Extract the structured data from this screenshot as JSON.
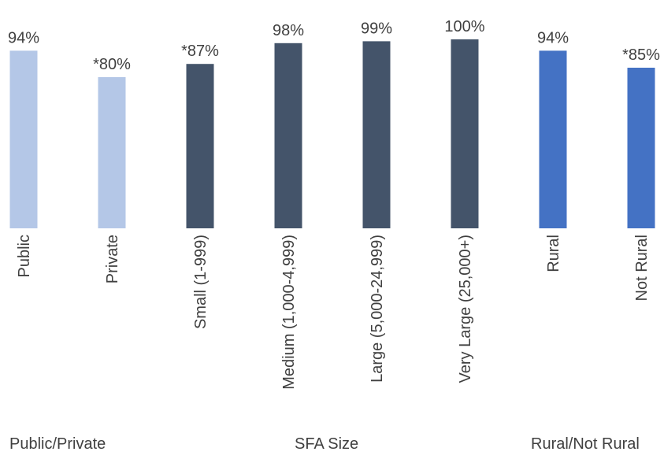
{
  "chart_data": {
    "type": "bar",
    "categories": [
      "Public",
      "Private",
      "Small (1-999)",
      "Medium (1,000-4,999)",
      "Large (5,000-24,999)",
      "Very Large (25,000+)",
      "Rural",
      "Not Rural"
    ],
    "values": [
      94,
      80,
      87,
      98,
      99,
      100,
      94,
      85
    ],
    "data_labels": [
      "94%",
      "*80%",
      "*87%",
      "98%",
      "99%",
      "100%",
      "94%",
      "*85%"
    ],
    "groups": [
      {
        "label": "Public/Private",
        "categories": [
          "Public",
          "Private"
        ],
        "color": "#b4c7e7"
      },
      {
        "label": "SFA Size",
        "categories": [
          "Small (1-999)",
          "Medium (1,000-4,999)",
          "Large (5,000-24,999)",
          "Very Large (25,000+)"
        ],
        "color": "#44546a"
      },
      {
        "label": "Rural/Not Rural",
        "categories": [
          "Rural",
          "Not Rural"
        ],
        "color": "#4472c4"
      }
    ],
    "colors": [
      "#b4c7e7",
      "#b4c7e7",
      "#44546a",
      "#44546a",
      "#44546a",
      "#44546a",
      "#4472c4",
      "#4472c4"
    ],
    "title": "",
    "xlabel": "",
    "ylabel": "",
    "ylim": [
      0,
      100
    ],
    "grid": false,
    "legend": "none"
  }
}
